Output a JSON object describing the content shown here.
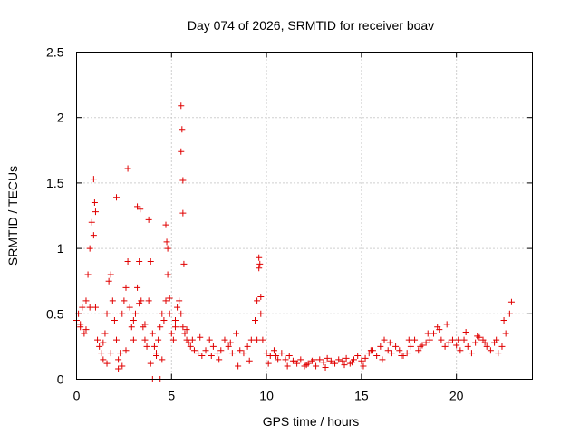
{
  "chart_data": {
    "type": "scatter",
    "title": "Day 074 of 2026, SRMTID for receiver boav",
    "xlabel": "GPS time / hours",
    "ylabel": "SRMTID / TECUs",
    "xlim": [
      0,
      24
    ],
    "ylim": [
      0,
      2.5
    ],
    "grid": true,
    "marker": "+",
    "x_ticks": [
      0,
      5,
      10,
      15,
      20
    ],
    "x_tick_labels": [
      "0",
      "5",
      "10",
      "15",
      "20"
    ],
    "y_ticks": [
      0,
      0.5,
      1,
      1.5,
      2,
      2.5
    ],
    "y_tick_labels": [
      "0",
      "0.5",
      "1",
      "1.5",
      "2",
      "2.5"
    ],
    "series": [
      {
        "name": "SRMTID",
        "color": "#e00000",
        "x": [
          0.0,
          0.1,
          0.2,
          0.3,
          0.4,
          0.5,
          0.6,
          0.7,
          0.8,
          0.9,
          1.0,
          1.1,
          1.2,
          1.3,
          1.4,
          1.5,
          1.6,
          1.7,
          1.8,
          1.9,
          2.0,
          2.1,
          2.2,
          2.3,
          2.4,
          2.5,
          2.6,
          2.7,
          2.8,
          2.9,
          3.0,
          3.1,
          3.2,
          3.3,
          3.4,
          3.5,
          3.6,
          3.7,
          3.8,
          3.9,
          4.0,
          4.1,
          4.2,
          4.3,
          4.4,
          4.5,
          4.6,
          4.7,
          4.8,
          4.9,
          5.0,
          5.1,
          5.2,
          5.3,
          5.4,
          5.5,
          5.6,
          5.7,
          5.8,
          5.9,
          6.0,
          6.2,
          6.4,
          6.6,
          6.8,
          7.0,
          7.2,
          7.4,
          7.6,
          7.8,
          8.0,
          8.2,
          8.4,
          8.6,
          8.8,
          9.0,
          9.2,
          9.4,
          9.5,
          9.6,
          9.7,
          9.8,
          10.0,
          10.2,
          10.4,
          10.6,
          10.8,
          11.0,
          11.2,
          11.4,
          11.6,
          11.8,
          12.0,
          12.2,
          12.4,
          12.6,
          12.8,
          13.0,
          13.2,
          13.4,
          13.6,
          13.8,
          14.0,
          14.2,
          14.4,
          14.6,
          14.8,
          15.0,
          15.2,
          15.4,
          15.6,
          15.8,
          16.0,
          16.2,
          16.4,
          16.6,
          16.8,
          17.0,
          17.2,
          17.4,
          17.6,
          17.8,
          18.0,
          18.2,
          18.4,
          18.6,
          18.8,
          19.0,
          19.2,
          19.4,
          19.6,
          19.8,
          20.0,
          20.2,
          20.4,
          20.6,
          20.8,
          21.0,
          21.2,
          21.4,
          21.6,
          21.8,
          22.0,
          22.2,
          22.4,
          22.6,
          22.8,
          0.9,
          0.95,
          1.0,
          2.1,
          2.7,
          3.2,
          3.35,
          3.8,
          4.7,
          4.75,
          4.8,
          5.5,
          5.55,
          5.5,
          5.6,
          5.6,
          5.65,
          9.6,
          9.65,
          9.7,
          4.0,
          4.4,
          0.2,
          0.5,
          0.7,
          1.4,
          1.6,
          1.8,
          2.2,
          2.4,
          2.6,
          3.0,
          3.3,
          3.6,
          3.9,
          4.2,
          4.5,
          4.9,
          5.2,
          5.8,
          6.1,
          6.5,
          7.1,
          7.5,
          8.1,
          8.5,
          9.1,
          9.5,
          10.1,
          10.5,
          11.1,
          11.5,
          12.1,
          12.5,
          13.1,
          13.5,
          14.1,
          14.5,
          15.1,
          15.5,
          16.1,
          16.5,
          17.1,
          17.5,
          18.1,
          18.5,
          19.1,
          19.5,
          20.1,
          20.5,
          21.1,
          21.5,
          22.1,
          22.5,
          22.9
        ],
        "y": [
          0.45,
          0.5,
          0.4,
          0.55,
          0.35,
          0.6,
          0.8,
          1.0,
          1.2,
          1.1,
          0.55,
          0.3,
          0.25,
          0.2,
          0.15,
          0.35,
          0.5,
          0.75,
          0.8,
          0.6,
          0.45,
          0.3,
          0.15,
          0.2,
          0.5,
          0.6,
          0.7,
          0.9,
          0.55,
          0.4,
          0.3,
          0.5,
          0.7,
          0.9,
          0.6,
          0.4,
          0.3,
          0.25,
          0.6,
          0.9,
          0.35,
          0.25,
          0.2,
          0.3,
          0.4,
          0.5,
          0.45,
          0.6,
          0.8,
          0.5,
          0.35,
          0.3,
          0.4,
          0.55,
          0.6,
          0.5,
          0.4,
          0.35,
          0.3,
          0.28,
          0.25,
          0.22,
          0.2,
          0.18,
          0.22,
          0.3,
          0.25,
          0.2,
          0.22,
          0.3,
          0.25,
          0.2,
          0.35,
          0.22,
          0.2,
          0.25,
          0.3,
          0.45,
          0.6,
          0.85,
          0.5,
          0.3,
          0.2,
          0.18,
          0.22,
          0.15,
          0.2,
          0.15,
          0.18,
          0.14,
          0.12,
          0.15,
          0.1,
          0.12,
          0.14,
          0.1,
          0.15,
          0.13,
          0.16,
          0.14,
          0.12,
          0.15,
          0.14,
          0.16,
          0.12,
          0.15,
          0.18,
          0.14,
          0.16,
          0.2,
          0.22,
          0.18,
          0.25,
          0.3,
          0.22,
          0.2,
          0.25,
          0.22,
          0.18,
          0.2,
          0.25,
          0.3,
          0.22,
          0.26,
          0.28,
          0.3,
          0.35,
          0.4,
          0.3,
          0.25,
          0.28,
          0.3,
          0.26,
          0.22,
          0.3,
          0.25,
          0.2,
          0.28,
          0.32,
          0.3,
          0.25,
          0.22,
          0.28,
          0.2,
          0.25,
          0.35,
          0.5,
          1.53,
          1.35,
          1.28,
          1.39,
          1.61,
          1.32,
          1.3,
          1.22,
          1.18,
          1.05,
          1.0,
          2.09,
          1.91,
          1.74,
          1.52,
          1.27,
          0.88,
          0.93,
          0.88,
          0.63,
          0.0,
          0.0,
          0.42,
          0.38,
          0.55,
          0.28,
          0.12,
          0.2,
          0.08,
          0.1,
          0.22,
          0.45,
          0.58,
          0.42,
          0.12,
          0.18,
          0.15,
          0.62,
          0.45,
          0.38,
          0.3,
          0.32,
          0.18,
          0.15,
          0.28,
          0.1,
          0.14,
          0.3,
          0.12,
          0.18,
          0.1,
          0.14,
          0.11,
          0.15,
          0.09,
          0.12,
          0.11,
          0.13,
          0.1,
          0.22,
          0.15,
          0.28,
          0.18,
          0.3,
          0.25,
          0.35,
          0.38,
          0.42,
          0.3,
          0.36,
          0.33,
          0.28,
          0.3,
          0.45,
          0.59
        ]
      }
    ]
  }
}
